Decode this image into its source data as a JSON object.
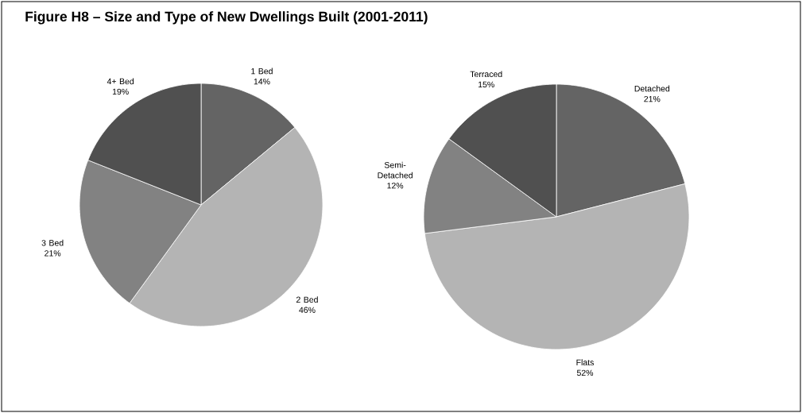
{
  "chart_data": [
    {
      "type": "pie",
      "title": "Figure H8 – Size and Type of New Dwellings Built (2001-2011)",
      "categories": [
        "1 Bed",
        "2 Bed",
        "3 Bed",
        "4+ Bed"
      ],
      "values": [
        14,
        46,
        21,
        19
      ],
      "value_labels": [
        "14%",
        "46%",
        "21%",
        "19%"
      ],
      "colors": [
        "#646464",
        "#b4b4b4",
        "#828282",
        "#505050"
      ]
    },
    {
      "type": "pie",
      "categories": [
        "Detached",
        "Flats",
        "Semi-Detached",
        "Terraced"
      ],
      "values": [
        21,
        52,
        12,
        15
      ],
      "value_labels": [
        "21%",
        "52%",
        "12%",
        "15%"
      ],
      "colors": [
        "#646464",
        "#b4b4b4",
        "#828282",
        "#505050"
      ]
    }
  ]
}
